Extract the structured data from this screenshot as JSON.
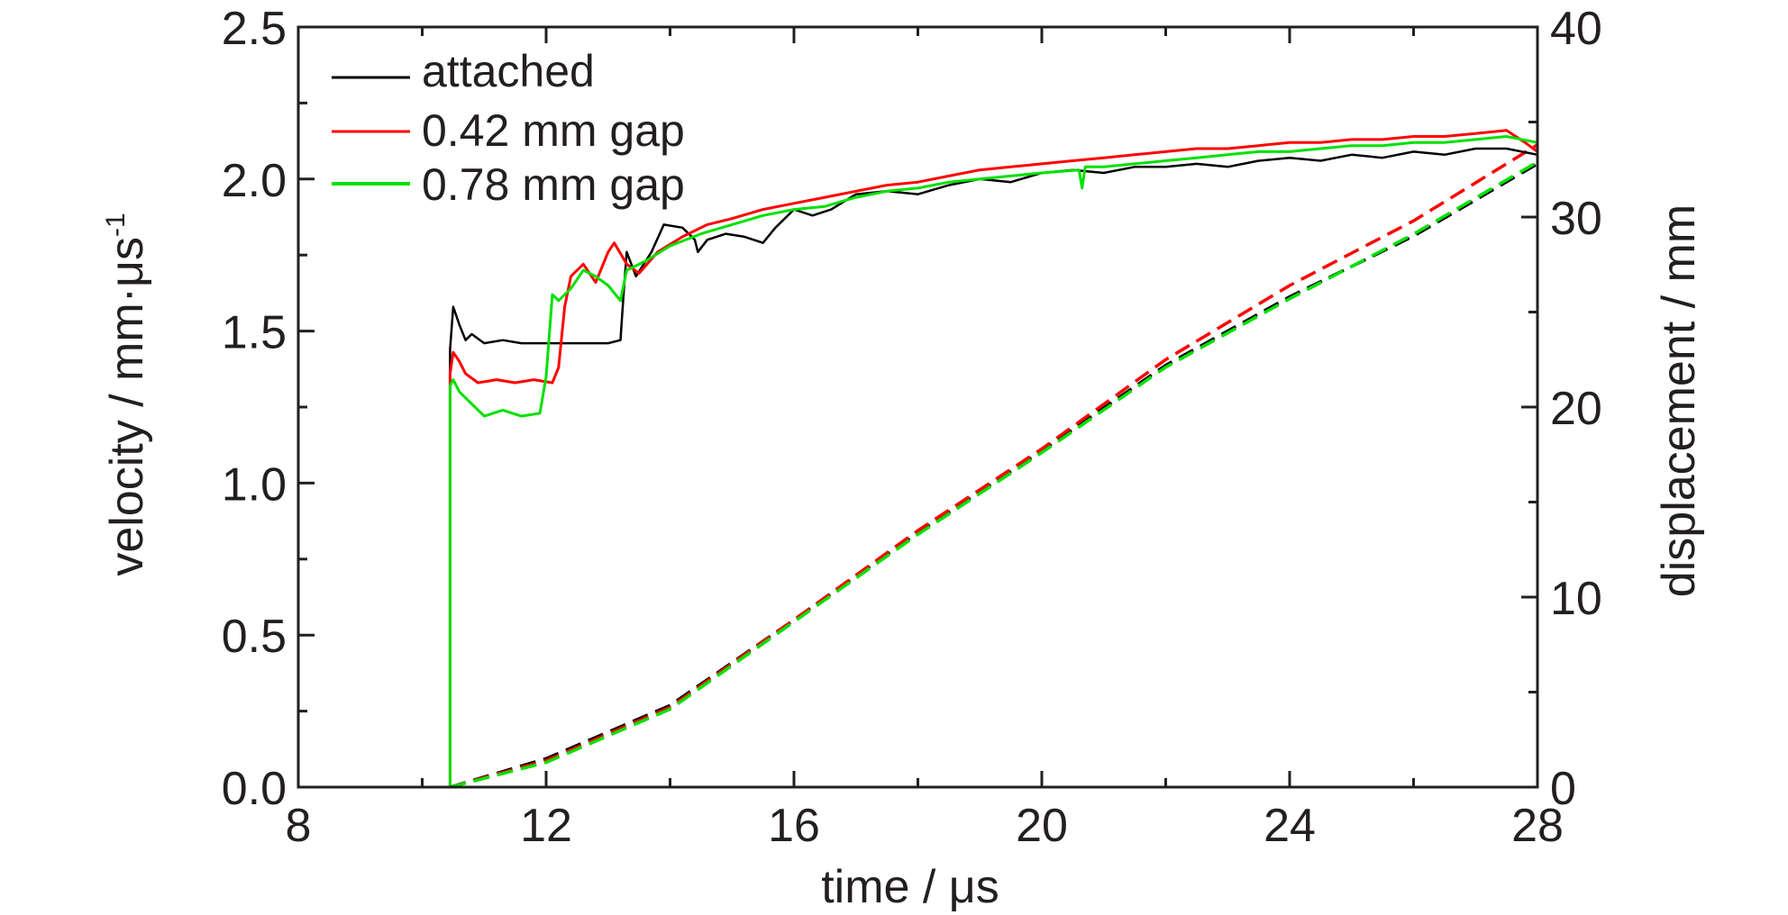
{
  "chart_data": {
    "type": "line",
    "title": "",
    "xlabel": "time / μs",
    "ylabel_left": "velocity / mm·μs",
    "ylabel_left_superscript": "-1",
    "ylabel_right": "displacement / mm",
    "xlim": [
      8,
      28
    ],
    "ylim_left": [
      0,
      2.5
    ],
    "ylim_right": [
      0,
      40
    ],
    "x_ticks": [
      "8",
      "12",
      "16",
      "20",
      "24",
      "28"
    ],
    "y_left_ticks": [
      "0.0",
      "0.5",
      "1.0",
      "1.5",
      "2.0",
      "2.5"
    ],
    "y_right_ticks": [
      "0",
      "10",
      "20",
      "30",
      "40"
    ],
    "grid": false,
    "legend_position": "top-left",
    "legend": [
      {
        "label": "attached",
        "color": "#000000"
      },
      {
        "label": "0.42 mm gap",
        "color": "#ff0000"
      },
      {
        "label": "0.78 mm gap",
        "color": "#00e000"
      }
    ],
    "velocity_series": [
      {
        "name": "attached",
        "color": "#000000",
        "points": [
          [
            8,
            0
          ],
          [
            10.45,
            0
          ],
          [
            10.45,
            1.44
          ],
          [
            10.5,
            1.58
          ],
          [
            10.6,
            1.52
          ],
          [
            10.7,
            1.47
          ],
          [
            10.8,
            1.49
          ],
          [
            11,
            1.46
          ],
          [
            11.3,
            1.47
          ],
          [
            11.6,
            1.46
          ],
          [
            12,
            1.46
          ],
          [
            12.5,
            1.46
          ],
          [
            13,
            1.46
          ],
          [
            13.2,
            1.47
          ],
          [
            13.25,
            1.62
          ],
          [
            13.3,
            1.76
          ],
          [
            13.45,
            1.68
          ],
          [
            13.7,
            1.76
          ],
          [
            13.9,
            1.85
          ],
          [
            14.2,
            1.84
          ],
          [
            14.4,
            1.8
          ],
          [
            14.45,
            1.76
          ],
          [
            14.6,
            1.8
          ],
          [
            14.9,
            1.82
          ],
          [
            15.2,
            1.81
          ],
          [
            15.5,
            1.79
          ],
          [
            15.7,
            1.84
          ],
          [
            16,
            1.9
          ],
          [
            16.3,
            1.88
          ],
          [
            16.6,
            1.9
          ],
          [
            17,
            1.95
          ],
          [
            17.5,
            1.96
          ],
          [
            18,
            1.95
          ],
          [
            18.5,
            1.98
          ],
          [
            19,
            2.0
          ],
          [
            19.5,
            1.99
          ],
          [
            20,
            2.02
          ],
          [
            20.5,
            2.03
          ],
          [
            21,
            2.02
          ],
          [
            21.5,
            2.04
          ],
          [
            22,
            2.04
          ],
          [
            22.5,
            2.05
          ],
          [
            23,
            2.04
          ],
          [
            23.5,
            2.06
          ],
          [
            24,
            2.07
          ],
          [
            24.5,
            2.06
          ],
          [
            25,
            2.08
          ],
          [
            25.5,
            2.07
          ],
          [
            26,
            2.09
          ],
          [
            26.5,
            2.08
          ],
          [
            27,
            2.1
          ],
          [
            27.5,
            2.1
          ],
          [
            28,
            2.08
          ]
        ]
      },
      {
        "name": "0.42 mm gap",
        "color": "#ff0000",
        "points": [
          [
            8,
            0
          ],
          [
            10.45,
            0
          ],
          [
            10.45,
            1.36
          ],
          [
            10.5,
            1.43
          ],
          [
            10.6,
            1.4
          ],
          [
            10.7,
            1.36
          ],
          [
            10.9,
            1.33
          ],
          [
            11.2,
            1.34
          ],
          [
            11.5,
            1.33
          ],
          [
            11.8,
            1.34
          ],
          [
            12.1,
            1.33
          ],
          [
            12.2,
            1.38
          ],
          [
            12.3,
            1.58
          ],
          [
            12.4,
            1.68
          ],
          [
            12.6,
            1.72
          ],
          [
            12.8,
            1.66
          ],
          [
            13,
            1.76
          ],
          [
            13.1,
            1.79
          ],
          [
            13.3,
            1.72
          ],
          [
            13.5,
            1.69
          ],
          [
            13.8,
            1.76
          ],
          [
            14.2,
            1.81
          ],
          [
            14.6,
            1.85
          ],
          [
            15,
            1.87
          ],
          [
            15.5,
            1.9
          ],
          [
            16,
            1.92
          ],
          [
            16.5,
            1.94
          ],
          [
            17,
            1.96
          ],
          [
            17.5,
            1.98
          ],
          [
            18,
            1.99
          ],
          [
            18.5,
            2.01
          ],
          [
            19,
            2.03
          ],
          [
            19.5,
            2.04
          ],
          [
            20,
            2.05
          ],
          [
            20.5,
            2.06
          ],
          [
            21,
            2.07
          ],
          [
            21.5,
            2.08
          ],
          [
            22,
            2.09
          ],
          [
            22.5,
            2.1
          ],
          [
            23,
            2.1
          ],
          [
            23.5,
            2.11
          ],
          [
            24,
            2.12
          ],
          [
            24.5,
            2.12
          ],
          [
            25,
            2.13
          ],
          [
            25.5,
            2.13
          ],
          [
            26,
            2.14
          ],
          [
            26.5,
            2.14
          ],
          [
            27,
            2.15
          ],
          [
            27.5,
            2.16
          ],
          [
            27.8,
            2.12
          ],
          [
            28,
            2.09
          ]
        ]
      },
      {
        "name": "0.78 mm gap",
        "color": "#00e000",
        "points": [
          [
            8,
            0
          ],
          [
            10.45,
            0
          ],
          [
            10.45,
            1.32
          ],
          [
            10.5,
            1.34
          ],
          [
            10.6,
            1.3
          ],
          [
            10.8,
            1.26
          ],
          [
            11,
            1.22
          ],
          [
            11.3,
            1.24
          ],
          [
            11.6,
            1.22
          ],
          [
            11.9,
            1.23
          ],
          [
            12.0,
            1.35
          ],
          [
            12.1,
            1.62
          ],
          [
            12.2,
            1.6
          ],
          [
            12.4,
            1.64
          ],
          [
            12.6,
            1.7
          ],
          [
            12.8,
            1.68
          ],
          [
            13,
            1.65
          ],
          [
            13.2,
            1.6
          ],
          [
            13.3,
            1.7
          ],
          [
            13.6,
            1.73
          ],
          [
            14,
            1.78
          ],
          [
            14.5,
            1.82
          ],
          [
            15,
            1.85
          ],
          [
            15.5,
            1.88
          ],
          [
            16,
            1.9
          ],
          [
            16.5,
            1.91
          ],
          [
            17,
            1.94
          ],
          [
            17.5,
            1.96
          ],
          [
            18,
            1.97
          ],
          [
            18.5,
            1.99
          ],
          [
            19,
            2.0
          ],
          [
            19.5,
            2.01
          ],
          [
            20,
            2.02
          ],
          [
            20.6,
            2.03
          ],
          [
            20.65,
            1.97
          ],
          [
            20.7,
            2.04
          ],
          [
            21,
            2.04
          ],
          [
            21.5,
            2.05
          ],
          [
            22,
            2.06
          ],
          [
            22.5,
            2.07
          ],
          [
            23,
            2.08
          ],
          [
            23.5,
            2.09
          ],
          [
            24,
            2.09
          ],
          [
            24.5,
            2.1
          ],
          [
            25,
            2.11
          ],
          [
            25.5,
            2.11
          ],
          [
            26,
            2.12
          ],
          [
            26.5,
            2.12
          ],
          [
            27,
            2.13
          ],
          [
            27.5,
            2.14
          ],
          [
            28,
            2.12
          ]
        ]
      }
    ],
    "displacement_series": [
      {
        "name": "attached",
        "color": "#000000",
        "points": [
          [
            10.45,
            0
          ],
          [
            12,
            1.5
          ],
          [
            14,
            4.3
          ],
          [
            16,
            8.8
          ],
          [
            18,
            13.4
          ],
          [
            20,
            17.7
          ],
          [
            22,
            22.2
          ],
          [
            24,
            25.8
          ],
          [
            26,
            29.0
          ],
          [
            28,
            32.8
          ]
        ]
      },
      {
        "name": "0.42 mm gap",
        "color": "#ff0000",
        "points": [
          [
            10.45,
            0
          ],
          [
            12,
            1.4
          ],
          [
            14,
            4.2
          ],
          [
            16,
            8.8
          ],
          [
            18,
            13.5
          ],
          [
            20,
            17.8
          ],
          [
            22,
            22.5
          ],
          [
            24,
            26.4
          ],
          [
            26,
            29.8
          ],
          [
            28,
            33.8
          ]
        ]
      },
      {
        "name": "0.78 mm gap",
        "color": "#00e000",
        "points": [
          [
            10.45,
            0
          ],
          [
            12,
            1.3
          ],
          [
            14,
            4.1
          ],
          [
            16,
            8.7
          ],
          [
            18,
            13.3
          ],
          [
            20,
            17.6
          ],
          [
            22,
            22.1
          ],
          [
            24,
            25.7
          ],
          [
            26,
            29.1
          ],
          [
            28,
            32.9
          ]
        ]
      }
    ]
  }
}
